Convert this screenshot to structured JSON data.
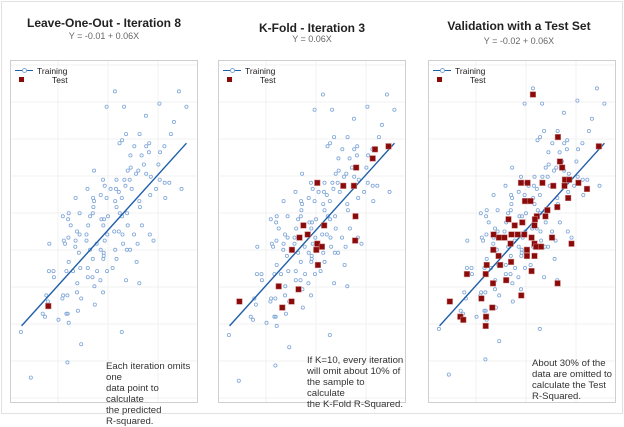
{
  "colors": {
    "training_points": "#7fa6d8",
    "training_line": "#1f5fa8",
    "test_points": "#8b0a0a",
    "grid": "#f0f0f0"
  },
  "chart_data": [
    {
      "type": "scatter",
      "title": "Leave-One-Out - Iteration 8",
      "subtitle": "Y = -0.01 + 0.06X",
      "fit": {
        "intercept": -0.01,
        "slope": 0.06,
        "x_range": [
          0,
          10
        ]
      },
      "xlim": [
        -0.64,
        10.64
      ],
      "ylim": [
        -0.26,
        0.86
      ],
      "grid": true,
      "legend": {
        "placement": "top-left",
        "training": "Training",
        "test": "Test"
      },
      "test_points": [
        [
          1.62,
          0.055
        ]
      ],
      "annotation": [
        "Each iteration omits one",
        "data point to calculate",
        "the predicted",
        "R-squared."
      ]
    },
    {
      "type": "scatter",
      "title": "K-Fold - Iteration 3",
      "subtitle": "Y = 0.06X",
      "fit": {
        "intercept": 0,
        "slope": 0.06,
        "x_range": [
          0,
          10
        ]
      },
      "xlim": [
        -0.64,
        10.64
      ],
      "ylim": [
        -0.25,
        0.87
      ],
      "grid": true,
      "legend": {
        "placement": "top-left",
        "training": "Training",
        "test": "Test"
      },
      "test_points": [
        [
          9.64,
          0.59
        ],
        [
          8.82,
          0.58
        ],
        [
          8.68,
          0.55
        ],
        [
          7.68,
          0.52
        ],
        [
          5.32,
          0.47
        ],
        [
          6.9,
          0.46
        ],
        [
          7.54,
          0.46
        ],
        [
          7.64,
          0.36
        ],
        [
          5.74,
          0.33
        ],
        [
          4.48,
          0.33
        ],
        [
          4.74,
          0.3
        ],
        [
          4.24,
          0.29
        ],
        [
          7.62,
          0.28
        ],
        [
          5.32,
          0.27
        ],
        [
          5.6,
          0.26
        ],
        [
          5.26,
          0.25
        ],
        [
          3.78,
          0.25
        ],
        [
          5.36,
          0.2
        ],
        [
          2.98,
          0.13
        ],
        [
          4.18,
          0.12
        ],
        [
          0.6,
          0.08
        ],
        [
          3.76,
          0.08
        ],
        [
          3.2,
          0.06
        ]
      ],
      "annotation": [
        "If K=10, every iteration",
        "will omit about 10% of",
        "the sample to calculate",
        "the K-Fold R-Squared."
      ]
    },
    {
      "type": "scatter",
      "title": "Validation with a Test Set",
      "subtitle": "Y = -0.02 + 0.06X",
      "fit": {
        "intercept": -0.02,
        "slope": 0.06,
        "x_range": [
          0,
          10
        ]
      },
      "xlim": [
        -0.64,
        10.64
      ],
      "ylim": [
        -0.27,
        0.85
      ],
      "grid": true,
      "legend": {
        "placement": "top-left",
        "training": "Training",
        "test": "Test"
      },
      "test_points": [
        [
          5.66,
          0.74
        ],
        [
          7.18,
          0.6
        ],
        [
          9.66,
          0.57
        ],
        [
          7.3,
          0.52
        ],
        [
          7.44,
          0.5
        ],
        [
          7.6,
          0.46
        ],
        [
          7.86,
          0.46
        ],
        [
          8.42,
          0.45
        ],
        [
          8.94,
          0.43
        ],
        [
          7.58,
          0.44
        ],
        [
          6.9,
          0.44
        ],
        [
          6.24,
          0.45
        ],
        [
          5.34,
          0.45
        ],
        [
          4.94,
          0.45
        ],
        [
          7.8,
          0.4
        ],
        [
          5.18,
          0.39
        ],
        [
          5.52,
          0.39
        ],
        [
          7.14,
          0.37
        ],
        [
          6.54,
          0.36
        ],
        [
          5.9,
          0.34
        ],
        [
          6.42,
          0.34
        ],
        [
          4.18,
          0.33
        ],
        [
          5.02,
          0.32
        ],
        [
          4.56,
          0.31
        ],
        [
          5.78,
          0.33
        ],
        [
          5.76,
          0.31
        ],
        [
          3.28,
          0.28
        ],
        [
          4.36,
          0.28
        ],
        [
          4.74,
          0.28
        ],
        [
          5.14,
          0.28
        ],
        [
          3.6,
          0.27
        ],
        [
          3.94,
          0.27
        ],
        [
          5.58,
          0.27
        ],
        [
          6.82,
          0.27
        ],
        [
          8.0,
          0.25
        ],
        [
          4.3,
          0.25
        ],
        [
          5.76,
          0.25
        ],
        [
          5.86,
          0.24
        ],
        [
          6.16,
          0.24
        ],
        [
          3.26,
          0.23
        ],
        [
          5.3,
          0.23
        ],
        [
          3.58,
          0.21
        ],
        [
          5.3,
          0.21
        ],
        [
          5.76,
          0.21
        ],
        [
          4.34,
          0.19
        ],
        [
          2.86,
          0.18
        ],
        [
          3.68,
          0.18
        ],
        [
          1.66,
          0.15
        ],
        [
          2.8,
          0.15
        ],
        [
          5.58,
          0.16
        ],
        [
          4.04,
          0.13
        ],
        [
          3.24,
          0.12
        ],
        [
          7.16,
          0.12
        ],
        [
          4.96,
          0.08
        ],
        [
          2.54,
          0.07
        ],
        [
          0.62,
          0.06
        ],
        [
          3.2,
          0.04
        ],
        [
          1.26,
          0.01
        ],
        [
          1.44,
          0.0
        ],
        [
          2.82,
          0.01
        ],
        [
          2.8,
          -0.02
        ]
      ],
      "annotation": [
        "About 30% of the",
        "data are omitted to",
        "calculate the Test",
        "R-Squared."
      ]
    }
  ],
  "training_points": [
    [
      5.66,
      0.76
    ],
    [
      9.54,
      0.76
    ],
    [
      8.36,
      0.72
    ],
    [
      5.16,
      0.71
    ],
    [
      6.22,
      0.71
    ],
    [
      10.0,
      0.71
    ],
    [
      7.54,
      0.68
    ],
    [
      9.24,
      0.66
    ],
    [
      6.34,
      0.62
    ],
    [
      9.06,
      0.62
    ],
    [
      7.16,
      0.62
    ],
    [
      6.1,
      0.6
    ],
    [
      5.94,
      0.59
    ],
    [
      7.74,
      0.59
    ],
    [
      6.84,
      0.58
    ],
    [
      7.56,
      0.58
    ],
    [
      7.72,
      0.56
    ],
    [
      8.4,
      0.56
    ],
    [
      8.66,
      0.58
    ],
    [
      6.6,
      0.55
    ],
    [
      7.28,
      0.55
    ],
    [
      7.42,
      0.52
    ],
    [
      8.3,
      0.52
    ],
    [
      6.62,
      0.51
    ],
    [
      7.08,
      0.5
    ],
    [
      6.44,
      0.5
    ],
    [
      4.4,
      0.5
    ],
    [
      6.94,
      0.49
    ],
    [
      7.56,
      0.49
    ],
    [
      7.84,
      0.48
    ],
    [
      4.94,
      0.47
    ],
    [
      5.76,
      0.47
    ],
    [
      6.56,
      0.47
    ],
    [
      8.38,
      0.47
    ],
    [
      6.24,
      0.47
    ],
    [
      8.68,
      0.46
    ],
    [
      8.96,
      0.46
    ],
    [
      8.16,
      0.44
    ],
    [
      5.04,
      0.45
    ],
    [
      5.4,
      0.44
    ],
    [
      5.72,
      0.44
    ],
    [
      6.3,
      0.45
    ],
    [
      5.9,
      0.43
    ],
    [
      4.0,
      0.44
    ],
    [
      6.68,
      0.44
    ],
    [
      9.7,
      0.44
    ],
    [
      3.28,
      0.41
    ],
    [
      4.34,
      0.41
    ],
    [
      4.8,
      0.42
    ],
    [
      6.08,
      0.41
    ],
    [
      7.8,
      0.42
    ],
    [
      8.72,
      0.41
    ],
    [
      4.4,
      0.4
    ],
    [
      5.16,
      0.41
    ],
    [
      5.68,
      0.4
    ],
    [
      4.36,
      0.38
    ],
    [
      5.76,
      0.38
    ],
    [
      7.14,
      0.4
    ],
    [
      3.52,
      0.36
    ],
    [
      4.32,
      0.36
    ],
    [
      5.24,
      0.35
    ],
    [
      5.96,
      0.36
    ],
    [
      6.4,
      0.36
    ],
    [
      7.18,
      0.38
    ],
    [
      2.5,
      0.35
    ],
    [
      2.86,
      0.36
    ],
    [
      4.16,
      0.35
    ],
    [
      4.84,
      0.34
    ],
    [
      5.0,
      0.34
    ],
    [
      6.1,
      0.35
    ],
    [
      2.82,
      0.34
    ],
    [
      2.98,
      0.32
    ],
    [
      3.36,
      0.3
    ],
    [
      4.04,
      0.32
    ],
    [
      4.96,
      0.32
    ],
    [
      5.9,
      0.3
    ],
    [
      6.44,
      0.32
    ],
    [
      7.3,
      0.32
    ],
    [
      3.52,
      0.29
    ],
    [
      3.94,
      0.29
    ],
    [
      5.2,
      0.29
    ],
    [
      5.62,
      0.3
    ],
    [
      6.12,
      0.29
    ],
    [
      6.82,
      0.29
    ],
    [
      7.78,
      0.29
    ],
    [
      8.0,
      0.27
    ],
    [
      2.56,
      0.27
    ],
    [
      2.84,
      0.28
    ],
    [
      1.68,
      0.26
    ],
    [
      3.28,
      0.27
    ],
    [
      3.94,
      0.27
    ],
    [
      4.56,
      0.26
    ],
    [
      5.04,
      0.27
    ],
    [
      6.16,
      0.26
    ],
    [
      7.04,
      0.26
    ],
    [
      2.64,
      0.26
    ],
    [
      3.26,
      0.25
    ],
    [
      4.16,
      0.24
    ],
    [
      4.8,
      0.24
    ],
    [
      4.98,
      0.23
    ],
    [
      5.68,
      0.24
    ],
    [
      6.38,
      0.24
    ],
    [
      6.58,
      0.24
    ],
    [
      3.48,
      0.23
    ],
    [
      2.86,
      0.2
    ],
    [
      4.32,
      0.21
    ],
    [
      4.98,
      0.22
    ],
    [
      5.76,
      0.21
    ],
    [
      4.96,
      0.21
    ],
    [
      6.98,
      0.2
    ],
    [
      1.66,
      0.17
    ],
    [
      1.94,
      0.17
    ],
    [
      2.72,
      0.17
    ],
    [
      3.56,
      0.18
    ],
    [
      4.02,
      0.18
    ],
    [
      4.58,
      0.17
    ],
    [
      5.52,
      0.18
    ],
    [
      5.18,
      0.17
    ],
    [
      3.12,
      0.17
    ],
    [
      1.96,
      0.15
    ],
    [
      3.38,
      0.13
    ],
    [
      4.02,
      0.15
    ],
    [
      4.78,
      0.14
    ],
    [
      4.3,
      0.15
    ],
    [
      6.34,
      0.14
    ],
    [
      7.14,
      0.13
    ],
    [
      1.5,
      0.09
    ],
    [
      2.52,
      0.09
    ],
    [
      2.78,
      0.09
    ],
    [
      4.42,
      0.12
    ],
    [
      4.94,
      0.1
    ],
    [
      2.48,
      0.08
    ],
    [
      3.36,
      0.1
    ],
    [
      1.6,
      0.07
    ],
    [
      3.62,
      0.08
    ],
    [
      4.44,
      0.06
    ],
    [
      1.28,
      0.03
    ],
    [
      1.42,
      0.02
    ],
    [
      2.72,
      0.03
    ],
    [
      2.8,
      0.03
    ],
    [
      3.42,
      0.04
    ],
    [
      2.24,
      0.01
    ],
    [
      2.86,
      0.0
    ],
    [
      -0.04,
      -0.03
    ],
    [
      6.08,
      -0.03
    ],
    [
      3.62,
      -0.07
    ],
    [
      2.78,
      -0.13
    ],
    [
      0.56,
      -0.18
    ]
  ]
}
